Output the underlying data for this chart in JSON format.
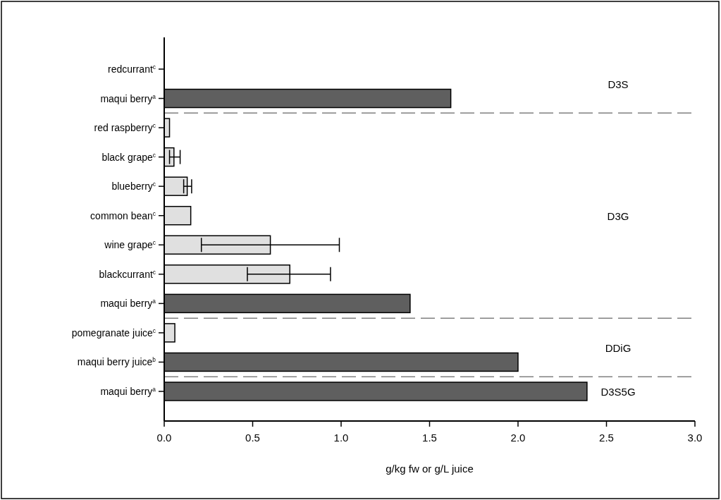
{
  "chart_data": {
    "type": "bar",
    "orientation": "horizontal",
    "xlabel": "g/kg fw or g/L juice",
    "categories": [
      "redcurrant$^{c}$",
      "maqui berry$^{a}$",
      "red raspberry$^{c}$",
      "black grape$^{c}$",
      "blueberry$^{c}$",
      "common bean$^{c}$",
      "wine grape$^{c}$",
      "blackcurrant$^{c}$",
      "maqui berry$^{a}$",
      "pomegranate juice$^{c}$",
      "maqui berry juice$^{b}$",
      "maqui berry$^{a}$"
    ],
    "values": [
      null,
      1.62,
      0.03,
      0.055,
      0.13,
      0.15,
      0.6,
      0.71,
      1.39,
      0.06,
      2.0,
      2.39
    ],
    "colors": [
      "#e0e0e0",
      "#5f5f5f",
      "#e0e0e0",
      "#e0e0e0",
      "#e0e0e0",
      "#e0e0e0",
      "#e0e0e0",
      "#e0e0e0",
      "#5f5f5f",
      "#e0e0e0",
      "#5f5f5f",
      "#5f5f5f"
    ],
    "errors": [
      null,
      null,
      null,
      [
        0.03,
        0.09
      ],
      [
        0.11,
        0.155
      ],
      null,
      [
        0.21,
        0.99
      ],
      [
        0.47,
        0.94
      ],
      null,
      null,
      null,
      null
    ],
    "xlim": [
      0,
      3
    ],
    "xticks": [
      {
        "value": 0,
        "label": "0.0"
      },
      {
        "value": 0.5,
        "label": "0.5"
      },
      {
        "value": 1,
        "label": "1.0"
      },
      {
        "value": 1.5,
        "label": "1.5"
      },
      {
        "value": 2,
        "label": "2.0"
      },
      {
        "value": 2.5,
        "label": "2.5"
      },
      {
        "value": 3,
        "label": "3.0"
      }
    ],
    "annotations": [
      "D3S",
      "D3G",
      "DDiG",
      "D3S5G"
    ]
  }
}
